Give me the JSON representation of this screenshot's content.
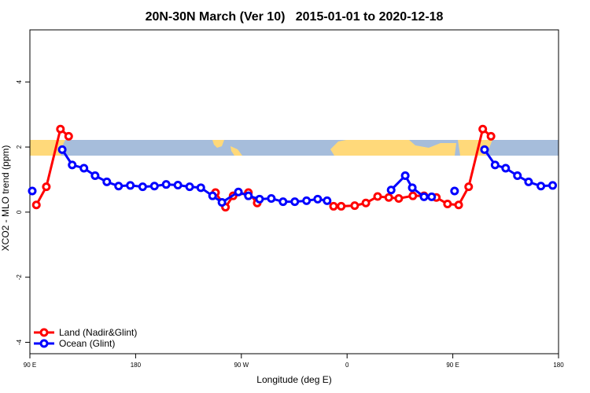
{
  "chart_data": {
    "type": "line",
    "title": "20N-30N March (Ver 10)   2015-01-01 to 2020-12-18",
    "xlabel": "Longitude (deg E)",
    "ylabel": "XCO2 - MLO trend (ppm)",
    "xlim": [
      90,
      540
    ],
    "ylim": [
      -4.35,
      5.6
    ],
    "xticks": [
      {
        "value": 90,
        "label": "90 E"
      },
      {
        "value": 180,
        "label": "180"
      },
      {
        "value": 270,
        "label": "90 W"
      },
      {
        "value": 360,
        "label": "0"
      },
      {
        "value": 450,
        "label": "90 E"
      },
      {
        "value": 540,
        "label": "180"
      }
    ],
    "yticks": [
      -4,
      -2,
      0,
      2,
      4
    ],
    "legend": "bottom-left",
    "series": [
      {
        "name": "Land (Nadir&Glint)",
        "color": "#ff0000",
        "x": [
          95.5,
          104,
          116,
          123,
          null,
          248,
          256.5,
          263,
          276,
          283.5,
          null,
          348.5,
          355,
          366.5,
          376,
          386,
          395.5,
          404,
          416,
          425.5,
          436,
          445.5,
          455,
          463.5,
          475.5,
          482.5
        ],
        "values": [
          0.22,
          0.78,
          2.55,
          2.33,
          null,
          0.6,
          0.15,
          0.5,
          0.6,
          0.28,
          null,
          0.18,
          0.18,
          0.2,
          0.28,
          0.48,
          0.45,
          0.42,
          0.5,
          0.5,
          0.45,
          0.25,
          0.22,
          0.78,
          2.55,
          2.33
        ]
      },
      {
        "name": "Ocean (Glint)",
        "color": "#0000ff",
        "x": [
          92,
          null,
          117.5,
          126,
          136,
          145.5,
          155.5,
          165.5,
          175.5,
          186,
          196,
          206,
          216,
          226,
          235.5,
          245.5,
          253.5,
          267.5,
          276,
          285.5,
          295.5,
          305.5,
          315.5,
          325.5,
          335,
          343,
          null,
          397.5,
          409.5,
          415.5,
          425.5,
          432,
          null,
          451.5,
          null,
          477,
          486,
          495,
          505,
          514.5,
          525,
          535
        ],
        "values": [
          0.65,
          null,
          1.92,
          1.45,
          1.35,
          1.12,
          0.93,
          0.8,
          0.82,
          0.78,
          0.8,
          0.85,
          0.83,
          0.78,
          0.75,
          0.5,
          0.3,
          0.62,
          0.5,
          0.4,
          0.42,
          0.32,
          0.32,
          0.35,
          0.4,
          0.35,
          null,
          0.68,
          1.12,
          0.75,
          0.47,
          0.47,
          null,
          0.65,
          null,
          1.92,
          1.45,
          1.35,
          1.12,
          0.93,
          0.8,
          0.82
        ]
      }
    ]
  }
}
